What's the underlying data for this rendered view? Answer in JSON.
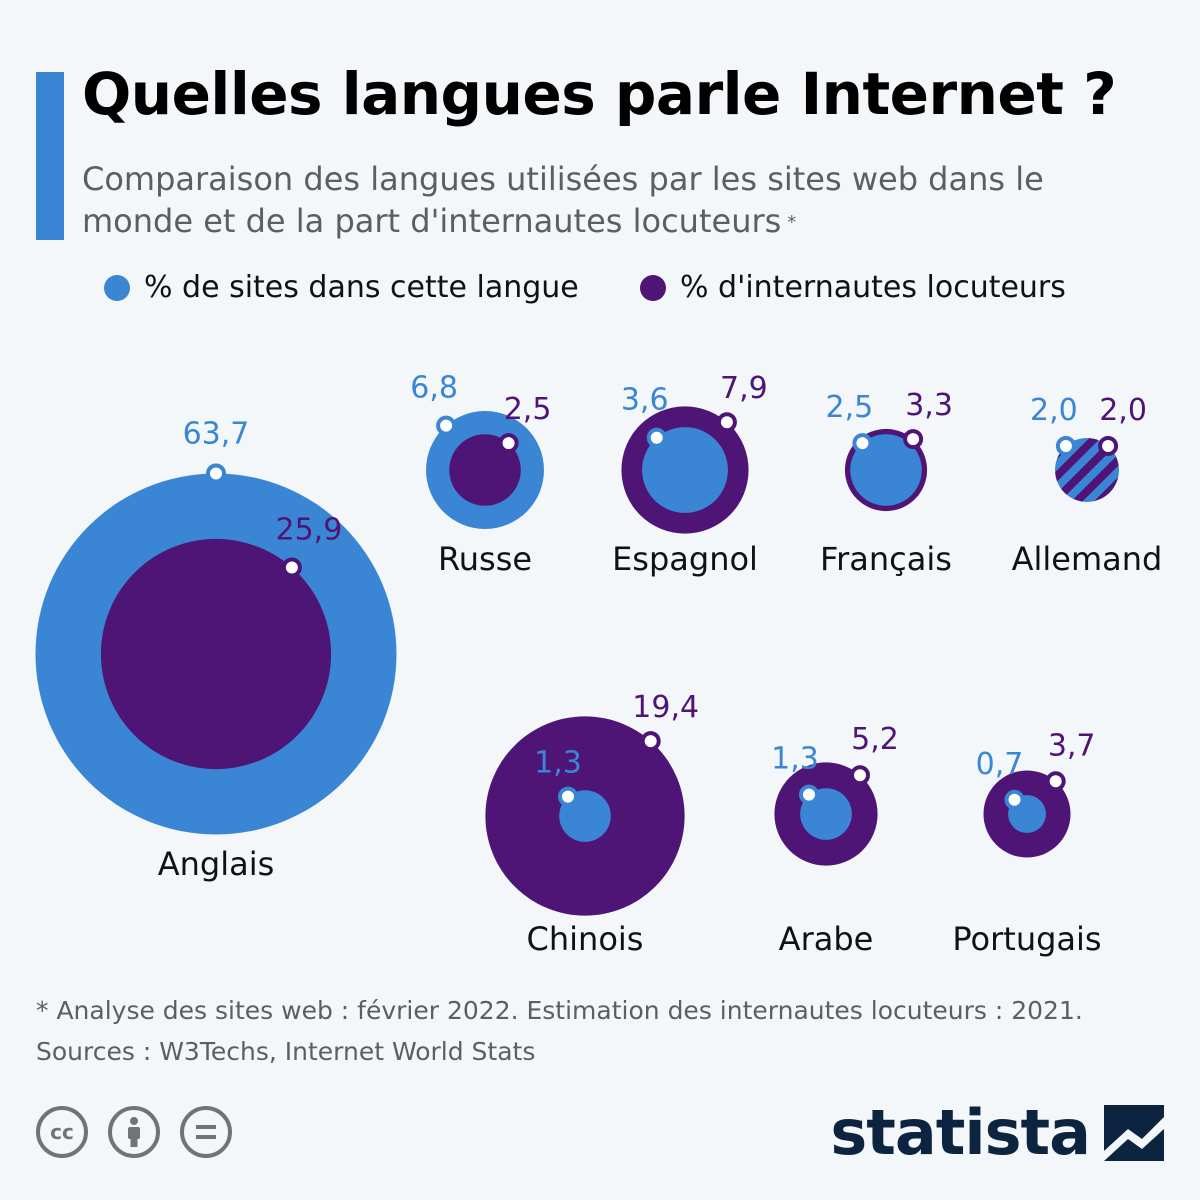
{
  "header": {
    "title": "Quelles langues parle Internet ?",
    "subtitle": "Comparaison des langues utilisées par les sites web dans le monde et de la part d'internautes locuteurs",
    "subtitle_mark": "*"
  },
  "legend": {
    "sites_label": "% de sites dans cette langue",
    "users_label": "% d'internautes locuteurs"
  },
  "colors": {
    "sites": "#3a86d4",
    "users": "#4e1577",
    "accent": "#3a86d4",
    "brand": "#0d2440"
  },
  "chart_data": {
    "type": "bubble",
    "series": [
      {
        "name": "% de sites dans cette langue",
        "color": "#3a86d4"
      },
      {
        "name": "% d'internautes locuteurs",
        "color": "#4e1577"
      }
    ],
    "points": [
      {
        "language": "Anglais",
        "sites": 63.7,
        "users": 25.9,
        "sites_label": "63,7",
        "users_label": "25,9"
      },
      {
        "language": "Russe",
        "sites": 6.8,
        "users": 2.5,
        "sites_label": "6,8",
        "users_label": "2,5"
      },
      {
        "language": "Espagnol",
        "sites": 3.6,
        "users": 7.9,
        "sites_label": "3,6",
        "users_label": "7,9"
      },
      {
        "language": "Français",
        "sites": 2.5,
        "users": 3.3,
        "sites_label": "2,5",
        "users_label": "3,3"
      },
      {
        "language": "Allemand",
        "sites": 2.0,
        "users": 2.0,
        "sites_label": "2,0",
        "users_label": "2,0"
      },
      {
        "language": "Chinois",
        "sites": 1.3,
        "users": 19.4,
        "sites_label": "1,3",
        "users_label": "19,4"
      },
      {
        "language": "Arabe",
        "sites": 1.3,
        "users": 5.2,
        "sites_label": "1,3",
        "users_label": "5,2"
      },
      {
        "language": "Portugais",
        "sites": 0.7,
        "users": 3.7,
        "sites_label": "0,7",
        "users_label": "3,7"
      }
    ]
  },
  "footer": {
    "note": "* Analyse des sites web : février 2022. Estimation des internautes locuteurs : 2021.",
    "sources": "Sources : W3Techs, Internet World Stats",
    "brand": "statista",
    "license_icons": [
      "cc-icon",
      "attribution-icon",
      "no-derivatives-icon"
    ]
  }
}
